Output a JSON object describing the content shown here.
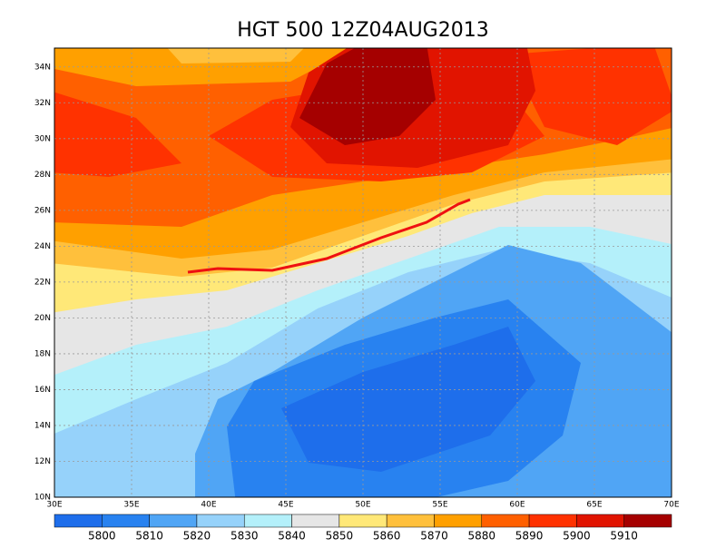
{
  "title": "HGT 500 12Z04AUG2013",
  "x_labels": [
    "30E",
    "35E",
    "40E",
    "45E",
    "50E",
    "55E",
    "60E",
    "65E",
    "70E"
  ],
  "y_labels": [
    "10N",
    "12N",
    "14N",
    "16N",
    "18N",
    "20N",
    "22N",
    "24N",
    "26N",
    "28N",
    "30N",
    "32N",
    "34N"
  ],
  "colorbar": {
    "colors": [
      "#1e6eeb",
      "#2882f0",
      "#50a5f5",
      "#96d2fa",
      "#b4f0fa",
      "#e6e6e6",
      "#ffe878",
      "#ffc03c",
      "#ffa000",
      "#ff6000",
      "#ff3200",
      "#e11400",
      "#a50000"
    ],
    "labels": [
      5800,
      5810,
      5820,
      5830,
      5840,
      5850,
      5860,
      5870,
      5880,
      5890,
      5900,
      5910
    ]
  }
}
